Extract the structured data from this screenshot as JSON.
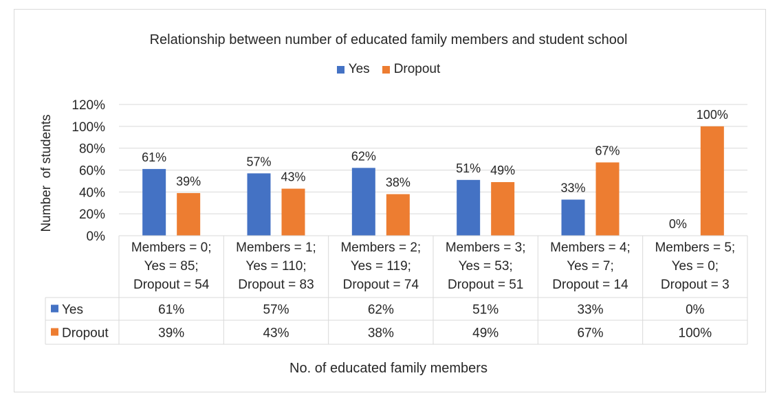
{
  "chart_data": {
    "type": "bar",
    "title": "Relationship between number of educated family members and student school",
    "ylabel": "Number  of students",
    "xlabel": "No. of educated family members",
    "ylim": [
      0,
      1.2
    ],
    "yticks": [
      "0%",
      "20%",
      "40%",
      "60%",
      "80%",
      "100%",
      "120%"
    ],
    "grid": true,
    "legend_position": "top",
    "categories": [
      [
        "Members = 0;",
        "Yes = 85;",
        "Dropout = 54"
      ],
      [
        "Members = 1;",
        "Yes = 110;",
        "Dropout = 83"
      ],
      [
        "Members = 2;",
        "Yes = 119;",
        "Dropout = 74"
      ],
      [
        "Members = 3;",
        "Yes = 53;",
        "Dropout = 51"
      ],
      [
        "Members = 4;",
        "Yes = 7;",
        "Dropout = 14"
      ],
      [
        "Members = 5;",
        "Yes = 0;",
        "Dropout = 3"
      ]
    ],
    "series": [
      {
        "name": "Yes",
        "color": "#4472c4",
        "values": [
          0.61,
          0.57,
          0.62,
          0.51,
          0.33,
          0.0
        ],
        "labels": [
          "61%",
          "57%",
          "62%",
          "51%",
          "33%",
          "0%"
        ]
      },
      {
        "name": "Dropout",
        "color": "#ed7d31",
        "values": [
          0.39,
          0.43,
          0.38,
          0.49,
          0.67,
          1.0
        ],
        "labels": [
          "39%",
          "43%",
          "38%",
          "49%",
          "67%",
          "100%"
        ]
      }
    ]
  }
}
